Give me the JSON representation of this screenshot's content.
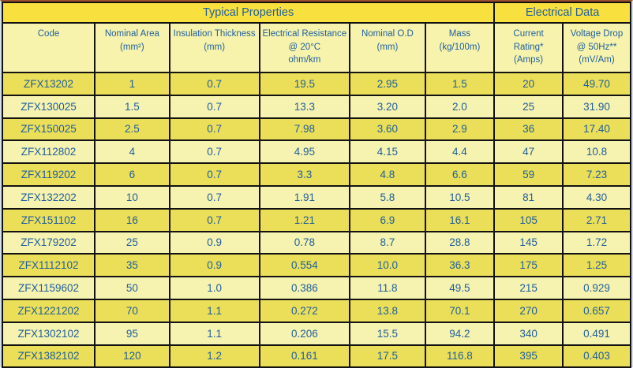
{
  "colors": {
    "band_yellow": "#f8e03e",
    "header_yellow": "#f7f3ac",
    "row_dark_yellow": "#ebde58",
    "row_light_yellow": "#f6f2af",
    "text_blue": "#1f5f9e",
    "grid_black": "#121212",
    "outer_edge": "#d3dfe9",
    "top_edge": "#9c4f2c"
  },
  "table": {
    "group_headers": [
      {
        "label": "Typical Properties",
        "colspan": 6
      },
      {
        "label": "Electrical Data",
        "colspan": 2
      }
    ],
    "columns": [
      {
        "key": "code",
        "lines": [
          "Code"
        ]
      },
      {
        "key": "nominal-area",
        "lines": [
          "Nominal Area",
          "(mm²)"
        ]
      },
      {
        "key": "insulation-thickness",
        "lines": [
          "Insulation Thickness",
          "(mm)"
        ]
      },
      {
        "key": "electrical-resistance",
        "lines": [
          "Electrical Resistance",
          "@ 20°C",
          "ohm/km"
        ]
      },
      {
        "key": "nominal-od",
        "lines": [
          "Nominal O.D",
          "(mm)"
        ]
      },
      {
        "key": "mass",
        "lines": [
          "Mass",
          "(kg/100m)"
        ]
      },
      {
        "key": "current-rating",
        "lines": [
          "Current",
          "Rating*",
          "(Amps)"
        ]
      },
      {
        "key": "voltage-drop",
        "lines": [
          "Voltage Drop",
          "@ 50Hz**",
          "(mV/Am)"
        ]
      }
    ],
    "col_widths_pct": [
      14.7,
      11.9,
      14.3,
      14.4,
      12.0,
      11.0,
      10.9,
      10.8
    ],
    "rows": [
      [
        "ZFX13202",
        "1",
        "0.7",
        "19.5",
        "2.95",
        "1.5",
        "20",
        "49.70"
      ],
      [
        "ZFX130025",
        "1.5",
        "0.7",
        "13.3",
        "3.20",
        "2.0",
        "25",
        "31.90"
      ],
      [
        "ZFX150025",
        "2.5",
        "0.7",
        "7.98",
        "3.60",
        "2.9",
        "36",
        "17.40"
      ],
      [
        "ZFX112802",
        "4",
        "0.7",
        "4.95",
        "4.15",
        "4.4",
        "47",
        "10.8"
      ],
      [
        "ZFX119202",
        "6",
        "0.7",
        "3.3",
        "4.8",
        "6.6",
        "59",
        "7.23"
      ],
      [
        "ZFX132202",
        "10",
        "0.7",
        "1.91",
        "5.8",
        "10.5",
        "81",
        "4.30"
      ],
      [
        "ZFX151102",
        "16",
        "0.7",
        "1.21",
        "6.9",
        "16.1",
        "105",
        "2.71"
      ],
      [
        "ZFX179202",
        "25",
        "0.9",
        "0.78",
        "8.7",
        "28.8",
        "145",
        "1.72"
      ],
      [
        "ZFX1112102",
        "35",
        "0.9",
        "0.554",
        "10.0",
        "36.3",
        "175",
        "1.25"
      ],
      [
        "ZFX1159602",
        "50",
        "1.0",
        "0.386",
        "11.8",
        "49.5",
        "215",
        "0.929"
      ],
      [
        "ZFX1221202",
        "70",
        "1.1",
        "0.272",
        "13.8",
        "70.1",
        "270",
        "0.657"
      ],
      [
        "ZFX1302102",
        "95",
        "1.1",
        "0.206",
        "15.5",
        "94.2",
        "340",
        "0.491"
      ],
      [
        "ZFX1382102",
        "120",
        "1.2",
        "0.161",
        "17.5",
        "116.8",
        "395",
        "0.403"
      ]
    ]
  }
}
